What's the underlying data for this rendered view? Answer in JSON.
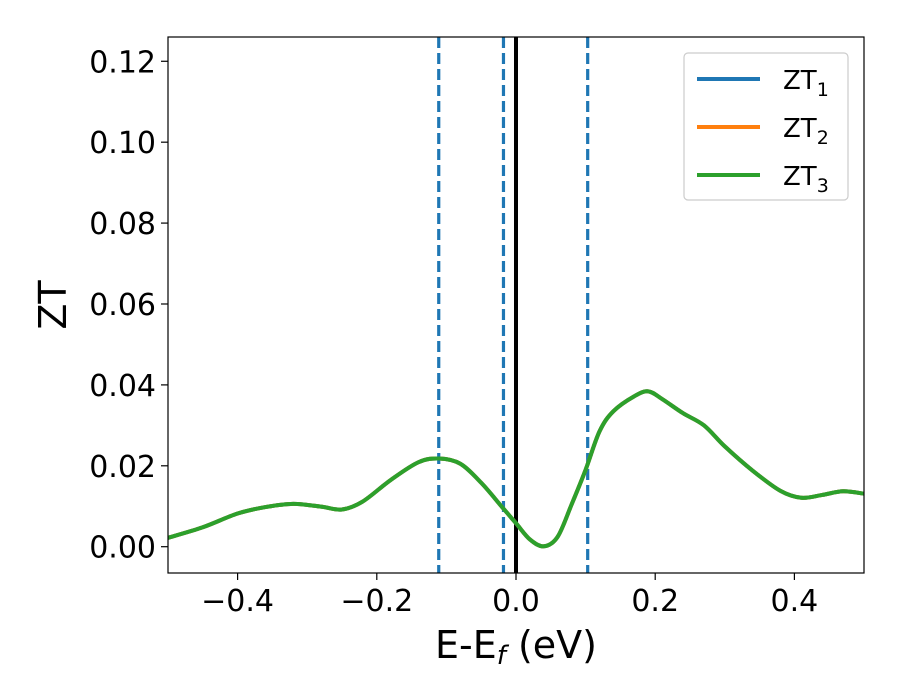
{
  "chart_data": {
    "type": "line",
    "xlabel": {
      "main": "E-E",
      "sub": "f",
      "unit": " (eV)"
    },
    "ylabel": "ZT",
    "xlim": [
      -0.5,
      0.5
    ],
    "ylim": [
      -0.0065,
      0.126
    ],
    "x_ticks": [
      -0.4,
      -0.2,
      0.0,
      0.2,
      0.4
    ],
    "x_tick_labels": [
      "−0.4",
      "−0.2",
      "0.0",
      "0.2",
      "0.4"
    ],
    "y_ticks": [
      0.0,
      0.02,
      0.04,
      0.06,
      0.08,
      0.1,
      0.12
    ],
    "y_tick_labels": [
      "0.00",
      "0.02",
      "0.04",
      "0.06",
      "0.08",
      "0.10",
      "0.12"
    ],
    "grid": false,
    "legend_position": "top-right",
    "series": [
      {
        "name": "ZT",
        "name_sub": "1",
        "color": "#1f77b4",
        "x": [
          -0.5,
          -0.45,
          -0.4,
          -0.36,
          -0.32,
          -0.28,
          -0.25,
          -0.22,
          -0.18,
          -0.14,
          -0.11,
          -0.08,
          -0.05,
          -0.02,
          0.0,
          0.02,
          0.04,
          0.06,
          0.08,
          0.1,
          0.12,
          0.14,
          0.17,
          0.19,
          0.21,
          0.24,
          0.27,
          0.3,
          0.34,
          0.38,
          0.41,
          0.44,
          0.47,
          0.5
        ],
        "y": [
          0.0022,
          0.0048,
          0.0082,
          0.0098,
          0.0106,
          0.0099,
          0.0092,
          0.0112,
          0.0165,
          0.0209,
          0.0218,
          0.0205,
          0.0158,
          0.0098,
          0.0058,
          0.0018,
          0.0001,
          0.0025,
          0.0105,
          0.019,
          0.0285,
          0.0335,
          0.0372,
          0.0384,
          0.0365,
          0.033,
          0.03,
          0.0248,
          0.0188,
          0.0138,
          0.0121,
          0.0128,
          0.0137,
          0.0131
        ]
      },
      {
        "name": "ZT",
        "name_sub": "2",
        "color": "#ff7f0e",
        "x": [
          -0.5,
          -0.45,
          -0.4,
          -0.36,
          -0.32,
          -0.28,
          -0.25,
          -0.22,
          -0.18,
          -0.14,
          -0.11,
          -0.08,
          -0.05,
          -0.02,
          0.0,
          0.02,
          0.04,
          0.06,
          0.08,
          0.1,
          0.12,
          0.14,
          0.17,
          0.19,
          0.21,
          0.24,
          0.27,
          0.3,
          0.34,
          0.38,
          0.41,
          0.44,
          0.47,
          0.5
        ],
        "y": [
          0.0022,
          0.0048,
          0.0082,
          0.0098,
          0.0106,
          0.0099,
          0.0092,
          0.0112,
          0.0165,
          0.0209,
          0.0218,
          0.0205,
          0.0158,
          0.0098,
          0.0058,
          0.0018,
          0.0001,
          0.0025,
          0.0105,
          0.019,
          0.0285,
          0.0335,
          0.0372,
          0.0384,
          0.0365,
          0.033,
          0.03,
          0.0248,
          0.0188,
          0.0138,
          0.0121,
          0.0128,
          0.0137,
          0.0131
        ]
      },
      {
        "name": "ZT",
        "name_sub": "3",
        "color": "#2ca02c",
        "x": [
          -0.5,
          -0.45,
          -0.4,
          -0.36,
          -0.32,
          -0.28,
          -0.25,
          -0.22,
          -0.18,
          -0.14,
          -0.11,
          -0.08,
          -0.05,
          -0.02,
          0.0,
          0.02,
          0.04,
          0.06,
          0.08,
          0.1,
          0.12,
          0.14,
          0.17,
          0.19,
          0.21,
          0.24,
          0.27,
          0.3,
          0.34,
          0.38,
          0.41,
          0.44,
          0.47,
          0.5
        ],
        "y": [
          0.0022,
          0.0048,
          0.0082,
          0.0098,
          0.0106,
          0.0099,
          0.0092,
          0.0112,
          0.0165,
          0.0209,
          0.0218,
          0.0205,
          0.0158,
          0.0098,
          0.0058,
          0.0018,
          0.0001,
          0.0025,
          0.0105,
          0.019,
          0.0285,
          0.0335,
          0.0372,
          0.0384,
          0.0365,
          0.033,
          0.03,
          0.0248,
          0.0188,
          0.0138,
          0.0121,
          0.0128,
          0.0137,
          0.0131
        ]
      }
    ],
    "vlines": [
      {
        "x": -0.111,
        "style": "dashed",
        "color": "#1f77b4"
      },
      {
        "x": -0.018,
        "style": "dashed",
        "color": "#1f77b4"
      },
      {
        "x": 0.0,
        "style": "solid",
        "color": "#000000"
      },
      {
        "x": 0.103,
        "style": "dashed",
        "color": "#1f77b4"
      }
    ]
  }
}
